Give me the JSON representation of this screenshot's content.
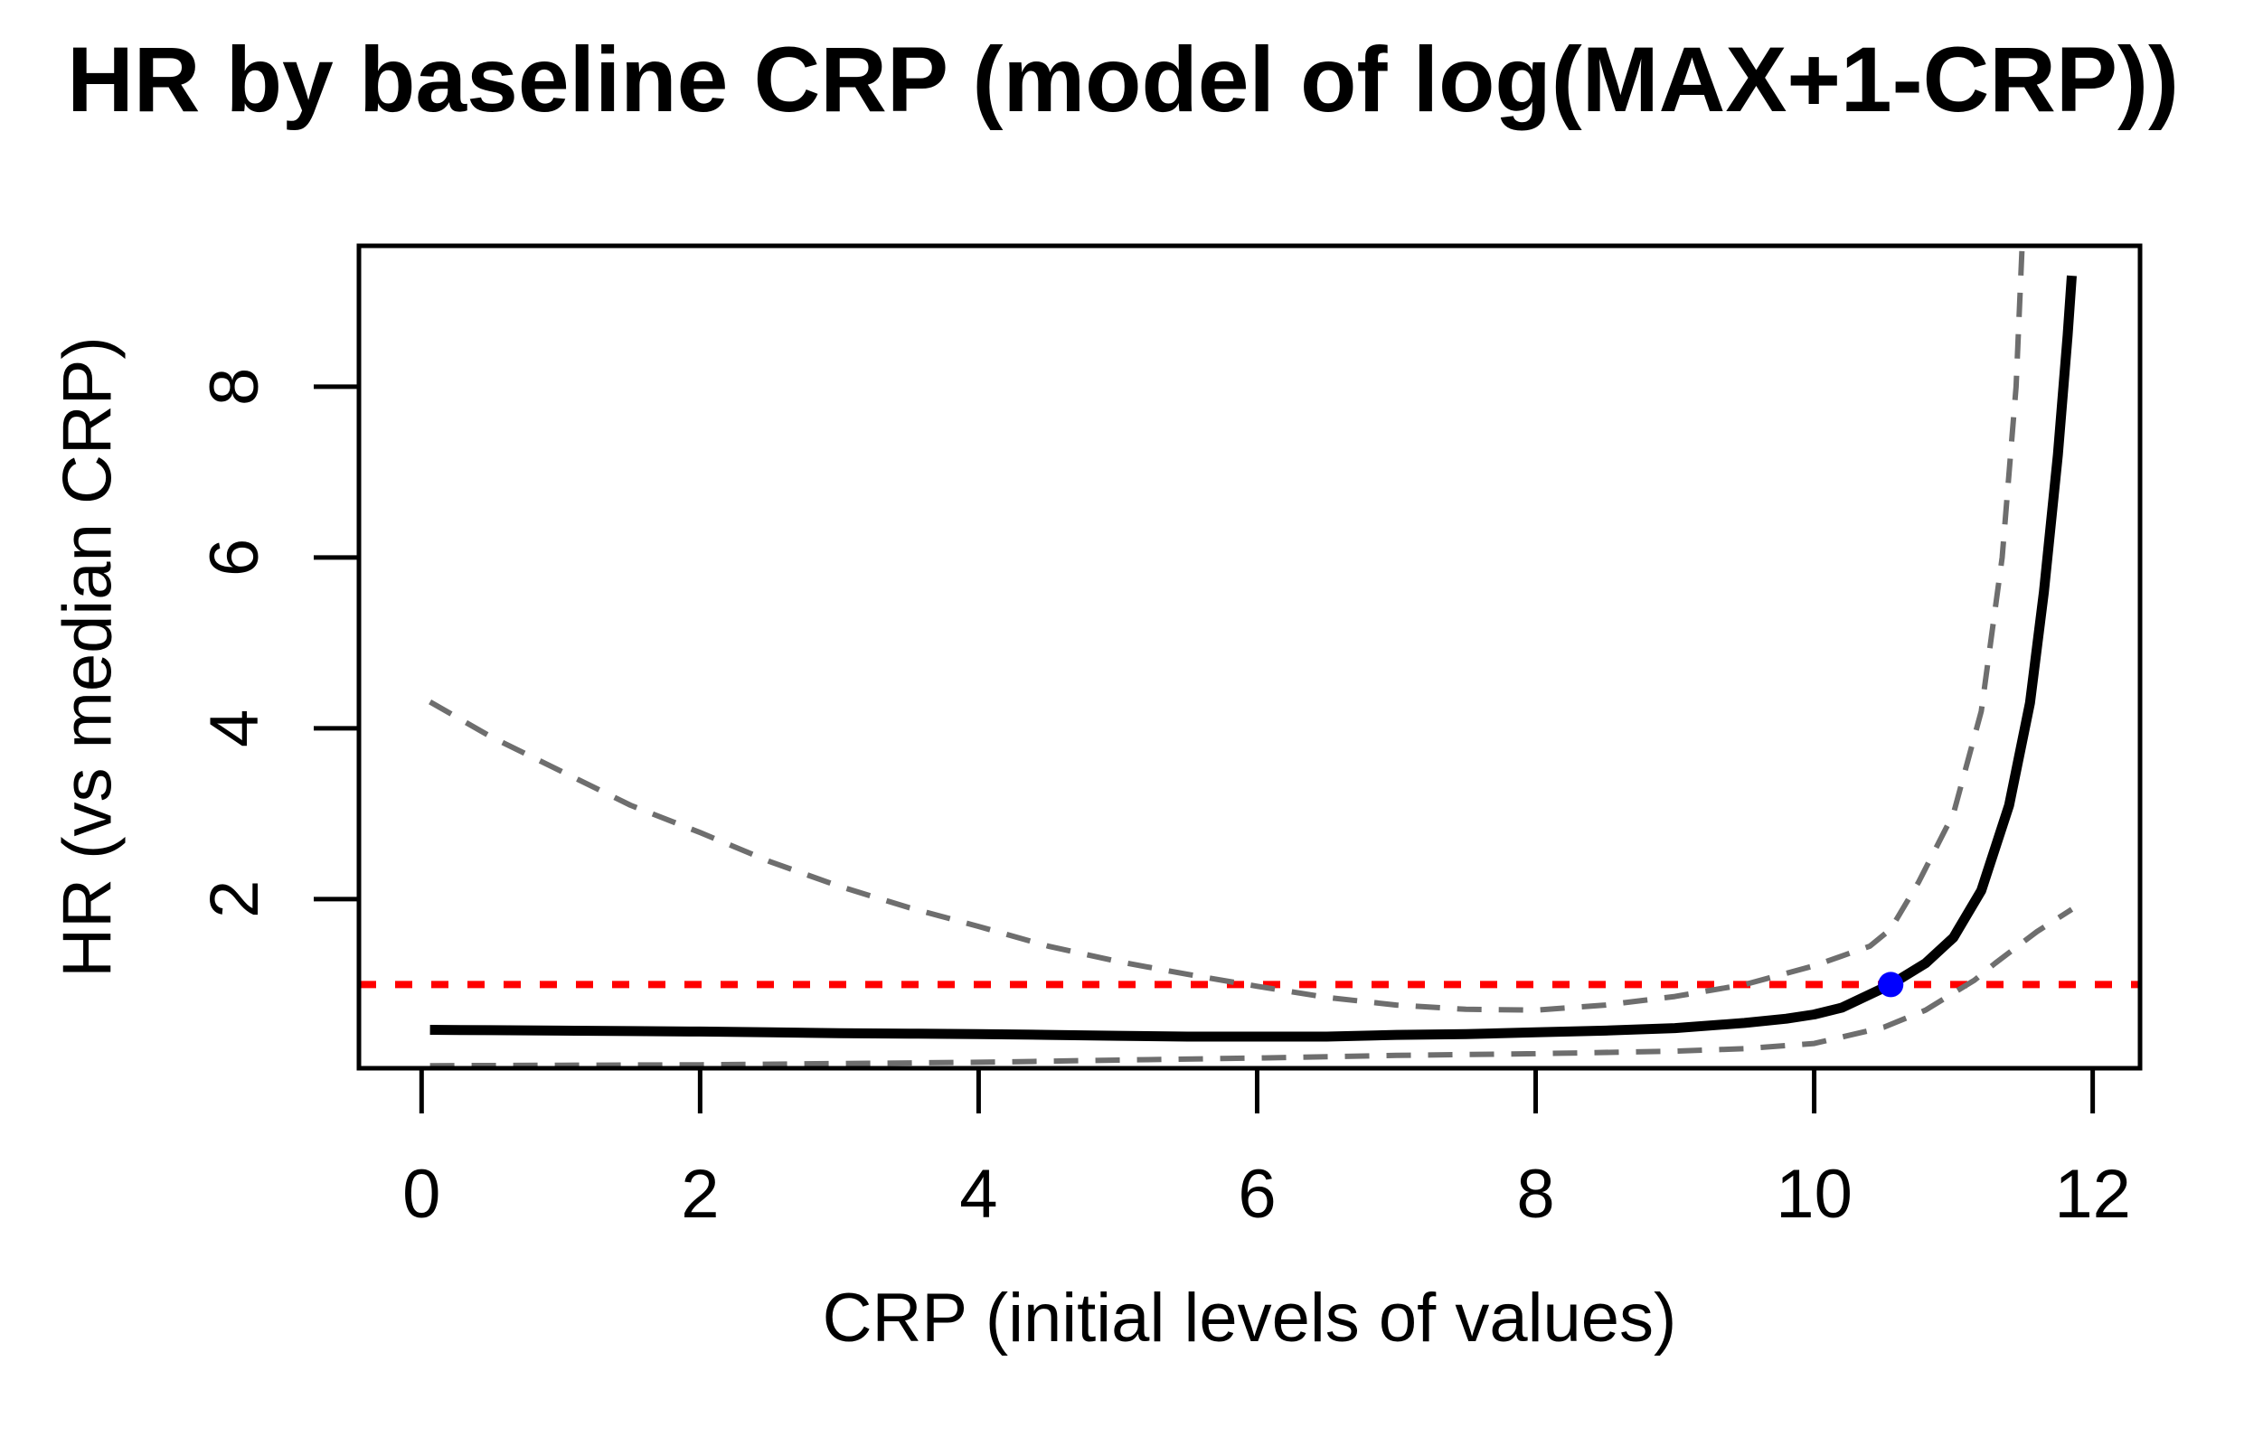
{
  "chart_data": {
    "type": "line",
    "title": "HR by baseline CRP (model of log(MAX+1-CRP))",
    "xlabel": "CRP (initial levels of values)",
    "ylabel": "HR (vs median CRP)",
    "x_ticks": [
      0,
      2,
      4,
      6,
      8,
      10,
      12
    ],
    "y_ticks": [
      2,
      4,
      6,
      8
    ],
    "xlim": [
      -0.45,
      12.34
    ],
    "ylim": [
      0.02,
      9.65
    ],
    "grid": false,
    "legend": "none",
    "colors": {
      "estimate": "#000000",
      "confidence_band": "#6e6e6e",
      "reference_line": "#ff0000",
      "marker": "#0000ff",
      "axis": "#000000"
    },
    "series": [
      {
        "name": "hr-estimate",
        "style": "solid",
        "color": "#000000",
        "width": 11,
        "points": [
          [
            0.06,
            0.47
          ],
          [
            0.5,
            0.465
          ],
          [
            1,
            0.46
          ],
          [
            1.5,
            0.455
          ],
          [
            2,
            0.45
          ],
          [
            2.5,
            0.44
          ],
          [
            3,
            0.43
          ],
          [
            3.5,
            0.425
          ],
          [
            4,
            0.42
          ],
          [
            4.5,
            0.41
          ],
          [
            5,
            0.4
          ],
          [
            5.5,
            0.39
          ],
          [
            6,
            0.39
          ],
          [
            6.5,
            0.39
          ],
          [
            7,
            0.41
          ],
          [
            7.5,
            0.42
          ],
          [
            8,
            0.44
          ],
          [
            8.5,
            0.46
          ],
          [
            9,
            0.49
          ],
          [
            9.5,
            0.55
          ],
          [
            9.8,
            0.6
          ],
          [
            10,
            0.65
          ],
          [
            10.2,
            0.73
          ],
          [
            10.55,
            1.0
          ],
          [
            10.8,
            1.25
          ],
          [
            11,
            1.55
          ],
          [
            11.2,
            2.1
          ],
          [
            11.4,
            3.1
          ],
          [
            11.55,
            4.3
          ],
          [
            11.65,
            5.6
          ],
          [
            11.75,
            7.2
          ],
          [
            11.82,
            8.6
          ],
          [
            11.85,
            9.3
          ]
        ]
      },
      {
        "name": "upper-95ci",
        "style": "dashed",
        "color": "#6e6e6e",
        "width": 6,
        "points": [
          [
            0.06,
            4.31
          ],
          [
            0.5,
            3.9
          ],
          [
            1,
            3.5
          ],
          [
            1.5,
            3.1
          ],
          [
            2,
            2.78
          ],
          [
            2.5,
            2.44
          ],
          [
            3,
            2.15
          ],
          [
            3.5,
            1.9
          ],
          [
            4,
            1.68
          ],
          [
            4.5,
            1.45
          ],
          [
            5,
            1.27
          ],
          [
            5.5,
            1.12
          ],
          [
            6,
            0.98
          ],
          [
            6.5,
            0.85
          ],
          [
            7,
            0.76
          ],
          [
            7.5,
            0.71
          ],
          [
            8,
            0.7
          ],
          [
            8.5,
            0.76
          ],
          [
            9,
            0.86
          ],
          [
            9.5,
            1.0
          ],
          [
            10,
            1.22
          ],
          [
            10.4,
            1.45
          ],
          [
            10.55,
            1.65
          ],
          [
            10.75,
            2.2
          ],
          [
            11.0,
            3.0
          ],
          [
            11.2,
            4.2
          ],
          [
            11.35,
            6.0
          ],
          [
            11.45,
            8.0
          ],
          [
            11.5,
            9.9
          ]
        ]
      },
      {
        "name": "lower-95ci",
        "style": "dashed",
        "color": "#6e6e6e",
        "width": 6,
        "points": [
          [
            0.06,
            0.05
          ],
          [
            1,
            0.055
          ],
          [
            2,
            0.06
          ],
          [
            3,
            0.075
          ],
          [
            4,
            0.09
          ],
          [
            5,
            0.115
          ],
          [
            6,
            0.14
          ],
          [
            7,
            0.17
          ],
          [
            8,
            0.19
          ],
          [
            9,
            0.22
          ],
          [
            9.5,
            0.25
          ],
          [
            10,
            0.31
          ],
          [
            10.5,
            0.5
          ],
          [
            10.8,
            0.7
          ],
          [
            11,
            0.9
          ],
          [
            11.15,
            1.05
          ],
          [
            11.3,
            1.25
          ],
          [
            11.6,
            1.62
          ],
          [
            11.85,
            1.88
          ]
        ]
      }
    ],
    "reference_line": {
      "y": 1,
      "color": "#ff0000",
      "style": "dotted"
    },
    "marker_point": {
      "x": 10.55,
      "y": 1,
      "color": "#0000ff"
    }
  }
}
